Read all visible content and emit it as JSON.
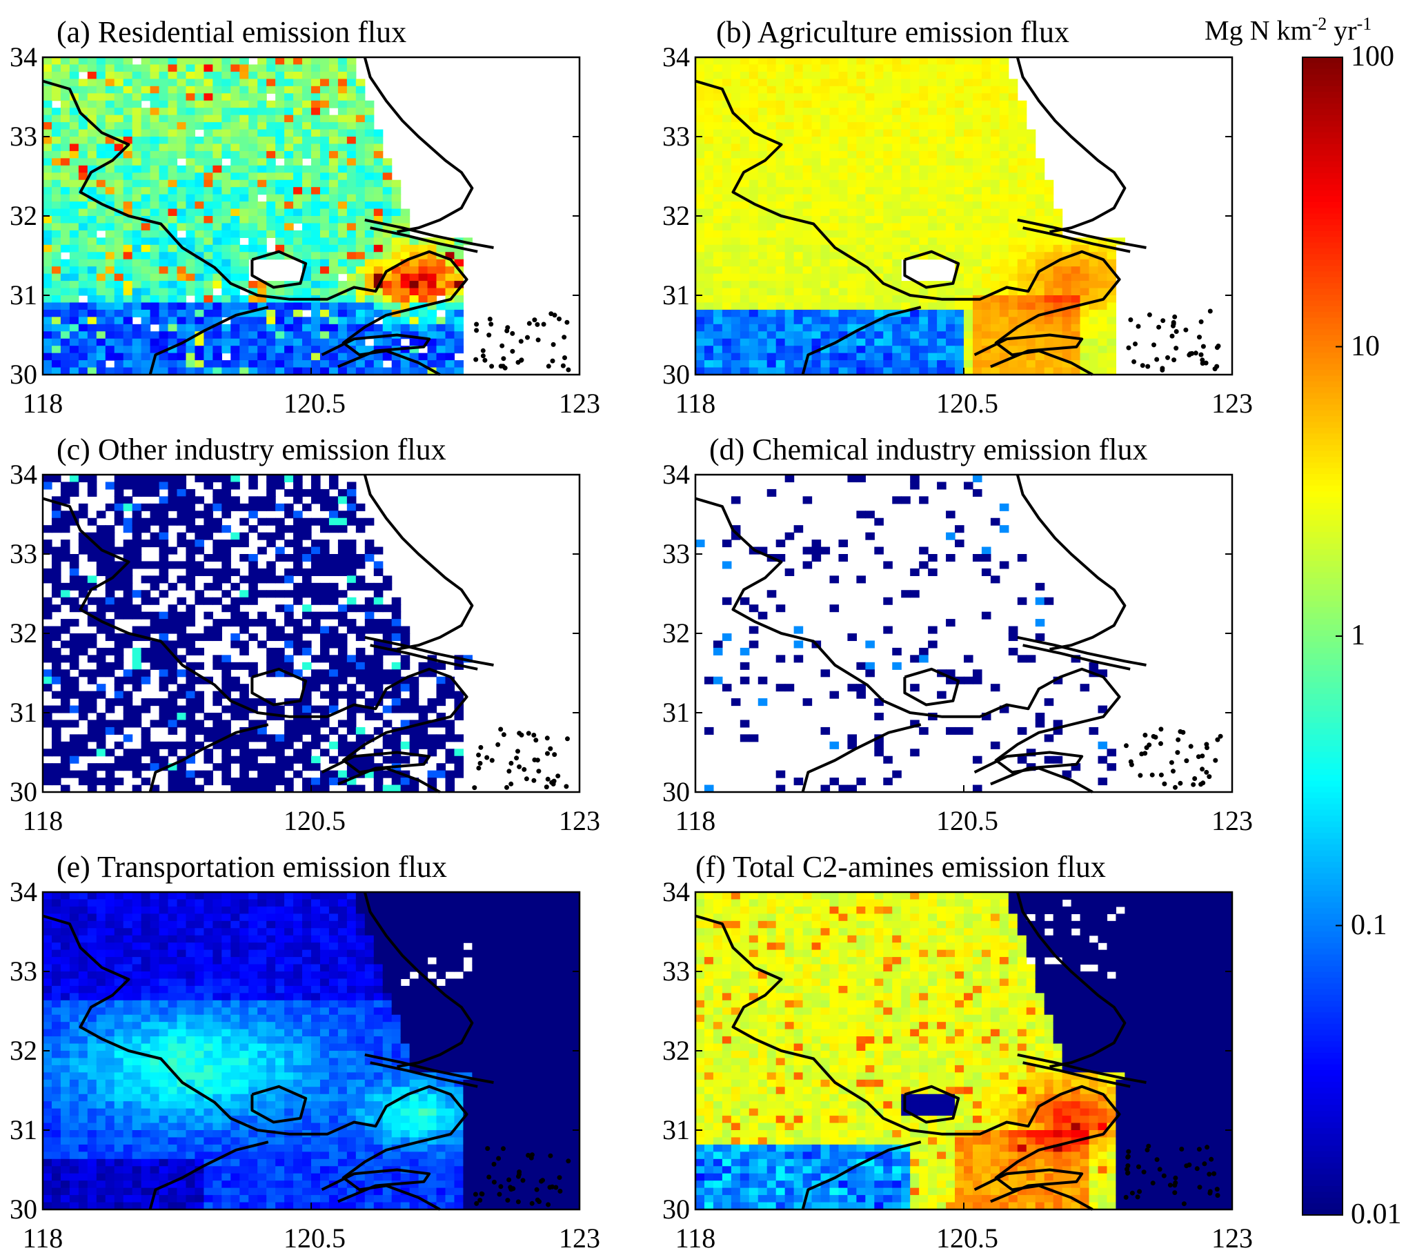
{
  "figure": {
    "panels": [
      {
        "id": "a",
        "title": "(a)  Residential emission flux",
        "pattern": "residential"
      },
      {
        "id": "b",
        "title": "(b)  Agriculture emission flux",
        "pattern": "agriculture"
      },
      {
        "id": "c",
        "title": "(c) Other industry emission flux",
        "pattern": "other_industry"
      },
      {
        "id": "d",
        "title": "(d) Chemical  industry emission flux",
        "pattern": "chemical"
      },
      {
        "id": "e",
        "title": "(e) Transportation emission flux",
        "pattern": "transportation"
      },
      {
        "id": "f",
        "title": "(f) Total C2-amines emission flux",
        "pattern": "total"
      }
    ],
    "x_ticks": [
      "118",
      "120.5",
      "123"
    ],
    "y_ticks": [
      "34",
      "33",
      "32",
      "31",
      "30"
    ],
    "colorbar": {
      "units_text": "Mg N km",
      "units_exp1": "-2",
      "units_mid": " yr",
      "units_exp2": "-1",
      "ticks": [
        "100",
        "10",
        "1",
        "0.1",
        "0.01"
      ],
      "scale": "log",
      "range": [
        0.01,
        100
      ],
      "colormap": "jet"
    },
    "colors": {
      "low": "#00008f",
      "high": "#800000",
      "coast": "#000000",
      "background": "#ffffff"
    }
  },
  "chart_data": {
    "type": "heatmap",
    "panels": [
      "Residential emission flux",
      "Agriculture emission flux",
      "Other industry emission flux",
      "Chemical industry emission flux",
      "Transportation emission flux",
      "Total C2-amines emission flux"
    ],
    "xlim": [
      118,
      123
    ],
    "ylim": [
      30,
      34
    ],
    "color_scale": "log",
    "color_range": [
      0.01,
      100
    ],
    "units": "Mg N km-2 yr-1"
  }
}
